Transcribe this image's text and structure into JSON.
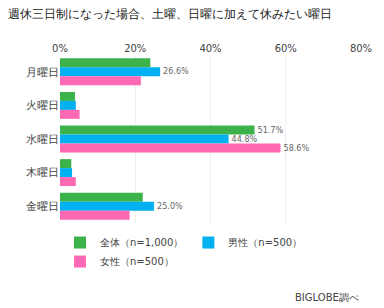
{
  "chart_data": {
    "type": "bar",
    "orientation": "horizontal",
    "title": "週休三日制になった場合、土曜、日曜に加えて休みたい曜日",
    "categories": [
      "月曜日",
      "火曜日",
      "水曜日",
      "木曜日",
      "金曜日"
    ],
    "series": [
      {
        "name": "全体（n=1,000）",
        "color": "#3cb34a",
        "values": [
          24.0,
          4.0,
          51.7,
          3.0,
          22.0
        ]
      },
      {
        "name": "男性（n=500）",
        "color": "#00b0f0",
        "values": [
          26.6,
          4.2,
          44.8,
          3.2,
          25.0
        ]
      },
      {
        "name": "女性（n=500）",
        "color": "#ff69b4",
        "values": [
          21.5,
          5.2,
          58.6,
          4.2,
          18.5
        ]
      }
    ],
    "annotations": [
      {
        "series": "男性（n=500）",
        "category": "月曜日",
        "text": "26.6%"
      },
      {
        "series": "全体（n=1,000）",
        "category": "水曜日",
        "text": "51.7%"
      },
      {
        "series": "男性（n=500）",
        "category": "水曜日",
        "text": "44.8%"
      },
      {
        "series": "女性（n=500）",
        "category": "水曜日",
        "text": "58.6%"
      },
      {
        "series": "男性（n=500）",
        "category": "金曜日",
        "text": "25.0%"
      },
      {
        "text": "BIGLOBE調べ"
      }
    ],
    "xlim": [
      0,
      80
    ],
    "xticks": [
      {
        "value": 0,
        "label": "0%"
      },
      {
        "value": 20,
        "label": "20%"
      },
      {
        "value": 40,
        "label": "40%"
      },
      {
        "value": 60,
        "label": "60%"
      },
      {
        "value": 80,
        "label": "80%"
      }
    ],
    "grid": true,
    "legend": "bottom"
  }
}
